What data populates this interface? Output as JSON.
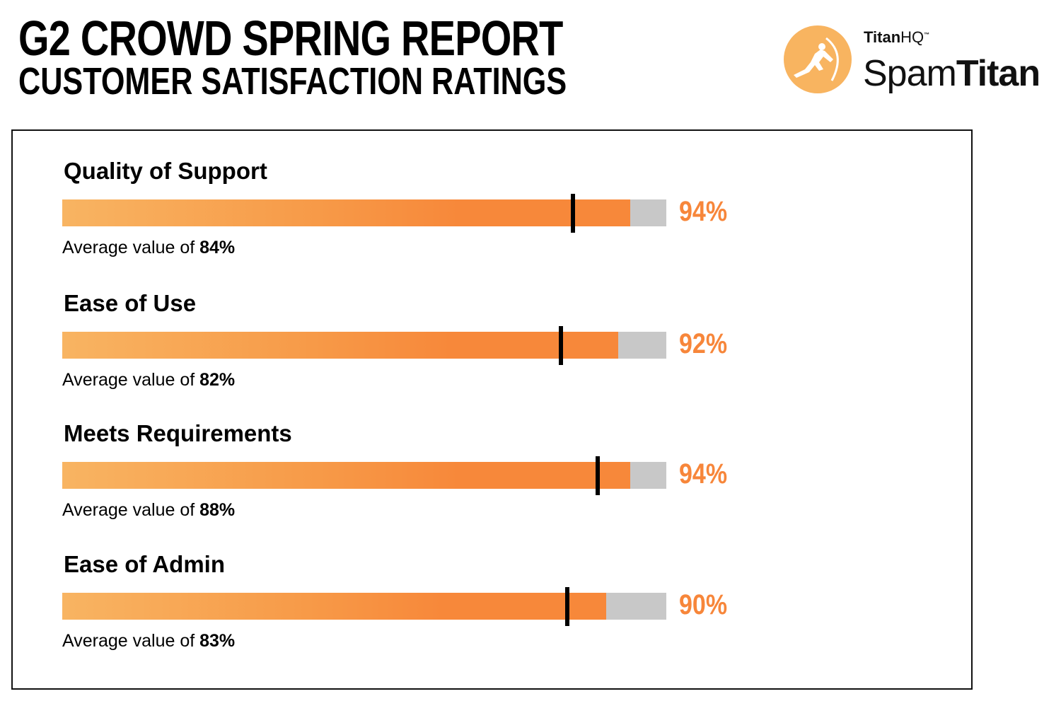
{
  "header": {
    "title": "G2 CROWD SPRING REPORT",
    "subtitle": "CUSTOMER SATISFACTION RATINGS"
  },
  "logo": {
    "brand_bold": "Titan",
    "brand_light": "HQ",
    "tm": "™",
    "product_light": "Spam",
    "product_bold": "Titan",
    "color": "#f8b460"
  },
  "chart_data": {
    "type": "bar",
    "subtype": "bullet",
    "title": "CUSTOMER SATISFACTION RATINGS",
    "xlim": [
      0,
      100
    ],
    "avg_prefix": "Average value of ",
    "categories": [
      "Quality of Support",
      "Ease of Use",
      "Meets Requirements",
      "Ease of Admin"
    ],
    "values": [
      94,
      92,
      94,
      90
    ],
    "value_labels": [
      "94%",
      "92%",
      "94%",
      "90%"
    ],
    "averages": [
      84,
      82,
      88,
      83
    ],
    "average_labels": [
      "84%",
      "82%",
      "88%",
      "83%"
    ],
    "colors": {
      "bar": "#f7883a",
      "track": "#c8c8c8",
      "marker": "#000000",
      "value_text": "#f7863a"
    }
  }
}
